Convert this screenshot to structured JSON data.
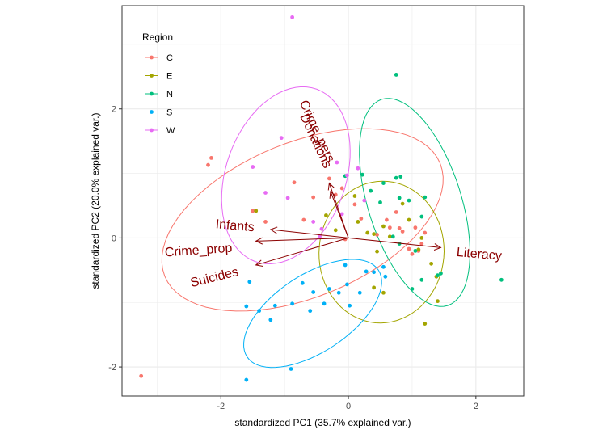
{
  "chart_data": {
    "type": "scatter",
    "subtype": "pca-biplot",
    "xlabel": "standardized PC1 (35.7% explained var.)",
    "ylabel": "standardized PC2 (20.0% explained var.)",
    "xlim": [
      -3.55,
      2.75
    ],
    "ylim": [
      -2.45,
      3.6
    ],
    "xticks": [
      -2,
      0,
      2
    ],
    "yticks": [
      -2,
      0,
      2
    ],
    "xtick_labels": [
      "-2",
      "0",
      "2"
    ],
    "ytick_labels": [
      "-2",
      "0",
      "2"
    ],
    "grid": true,
    "legend": {
      "title": "Region",
      "position": "top-left",
      "entries": [
        "C",
        "E",
        "N",
        "S",
        "W"
      ]
    },
    "colors": {
      "C": "#F8766D",
      "E": "#A3A500",
      "N": "#00BF7D",
      "S": "#00B0F6",
      "W": "#E76BF3",
      "arrow": "#8b0000",
      "panel_border": "#333333",
      "grid": "#ebebeb"
    },
    "series": [
      {
        "name": "C",
        "points": [
          [
            -3.25,
            -2.14
          ],
          [
            -2.2,
            1.13
          ],
          [
            -2.15,
            1.24
          ],
          [
            -1.5,
            0.42
          ],
          [
            -1.45,
            0.42
          ],
          [
            -1.3,
            0.25
          ],
          [
            -0.85,
            0.86
          ],
          [
            -0.7,
            0.28
          ],
          [
            -0.55,
            0.63
          ],
          [
            -0.3,
            0.92
          ],
          [
            -0.2,
            0.67
          ],
          [
            -0.1,
            0.77
          ],
          [
            -0.05,
            -0.02
          ],
          [
            0.1,
            0.52
          ],
          [
            0.2,
            0.3
          ],
          [
            0.45,
            0.05
          ],
          [
            0.6,
            0.28
          ],
          [
            0.65,
            0.16
          ],
          [
            0.75,
            0.4
          ],
          [
            0.8,
            0.15
          ],
          [
            0.85,
            0.1
          ],
          [
            1.05,
            0.16
          ],
          [
            1.1,
            -0.2
          ],
          [
            0.95,
            -0.17
          ],
          [
            1.0,
            -0.25
          ],
          [
            1.15,
            -0.09
          ],
          [
            1.2,
            0.08
          ]
        ]
      },
      {
        "name": "E",
        "points": [
          [
            -1.45,
            0.42
          ],
          [
            -0.35,
            0.35
          ],
          [
            -0.2,
            0.12
          ],
          [
            0.1,
            0.65
          ],
          [
            0.15,
            0.25
          ],
          [
            0.3,
            0.08
          ],
          [
            0.4,
            0.06
          ],
          [
            0.45,
            -0.21
          ],
          [
            0.55,
            0.18
          ],
          [
            0.65,
            0.02
          ],
          [
            0.85,
            0.53
          ],
          [
            0.95,
            0.28
          ],
          [
            1.1,
            -0.18
          ],
          [
            1.15,
            0.0
          ],
          [
            1.2,
            -1.33
          ],
          [
            1.3,
            -0.4
          ],
          [
            1.38,
            -0.6
          ],
          [
            1.4,
            -0.98
          ],
          [
            0.4,
            -0.77
          ],
          [
            0.55,
            -0.85
          ]
        ]
      },
      {
        "name": "N",
        "points": [
          [
            0.75,
            2.53
          ],
          [
            -0.05,
            0.96
          ],
          [
            0.22,
            0.98
          ],
          [
            0.35,
            0.73
          ],
          [
            0.5,
            0.55
          ],
          [
            0.55,
            0.85
          ],
          [
            0.75,
            0.93
          ],
          [
            0.8,
            0.62
          ],
          [
            0.95,
            0.58
          ],
          [
            1.15,
            0.33
          ],
          [
            1.2,
            0.63
          ],
          [
            0.7,
            0.02
          ],
          [
            0.8,
            -0.09
          ],
          [
            1.05,
            -0.2
          ],
          [
            1.4,
            -0.58
          ],
          [
            1.45,
            -0.55
          ],
          [
            1.15,
            -0.65
          ],
          [
            1.0,
            -0.79
          ],
          [
            2.4,
            -0.65
          ],
          [
            0.82,
            0.95
          ]
        ]
      },
      {
        "name": "S",
        "points": [
          [
            -1.4,
            -1.13
          ],
          [
            -1.6,
            -1.06
          ],
          [
            -1.55,
            -0.68
          ],
          [
            -1.15,
            -1.05
          ],
          [
            -0.88,
            -1.02
          ],
          [
            -0.72,
            -0.7
          ],
          [
            -0.55,
            -0.84
          ],
          [
            -0.6,
            -1.13
          ],
          [
            -0.38,
            -1.02
          ],
          [
            -0.3,
            -0.79
          ],
          [
            -0.15,
            -0.85
          ],
          [
            -0.02,
            -0.72
          ],
          [
            0.02,
            -1.05
          ],
          [
            0.18,
            -0.85
          ],
          [
            0.28,
            -0.52
          ],
          [
            0.4,
            -0.53
          ],
          [
            0.55,
            -0.45
          ],
          [
            0.58,
            -0.6
          ],
          [
            -0.05,
            -0.42
          ],
          [
            -1.6,
            -2.2
          ],
          [
            -0.9,
            -2.03
          ],
          [
            -1.22,
            -1.27
          ]
        ]
      },
      {
        "name": "W",
        "points": [
          [
            -0.88,
            3.42
          ],
          [
            -1.5,
            1.1
          ],
          [
            -1.3,
            0.7
          ],
          [
            -0.95,
            0.62
          ],
          [
            -1.05,
            1.55
          ],
          [
            -0.55,
            0.25
          ],
          [
            -0.42,
            0.14
          ],
          [
            -0.18,
            1.17
          ],
          [
            -0.1,
            0.37
          ],
          [
            -0.02,
            0.97
          ],
          [
            0.15,
            1.08
          ],
          [
            0.25,
            0.58
          ],
          [
            -0.45,
            0.02
          ]
        ]
      }
    ],
    "ellipses": [
      {
        "group": "C",
        "cx": -0.72,
        "cy": 0.28,
        "rx": 2.33,
        "ry": 1.2,
        "angle_deg": 22
      },
      {
        "group": "E",
        "cx": 0.52,
        "cy": -0.22,
        "rx": 0.98,
        "ry": 1.1,
        "angle_deg": -5
      },
      {
        "group": "N",
        "cx": 1.04,
        "cy": 0.55,
        "rx": 0.73,
        "ry": 1.68,
        "angle_deg": 18
      },
      {
        "group": "S",
        "cx": -0.56,
        "cy": -1.17,
        "rx": 1.23,
        "ry": 0.6,
        "angle_deg": 33
      },
      {
        "group": "W",
        "cx": -0.98,
        "cy": 0.97,
        "rx": 0.94,
        "ry": 1.42,
        "angle_deg": -20
      }
    ],
    "arrows": [
      {
        "label": "Crime_pers",
        "x": -0.3,
        "y": 0.85
      },
      {
        "label": "Donations",
        "x": -0.28,
        "y": 0.72
      },
      {
        "label": "Infants",
        "x": -1.22,
        "y": 0.13
      },
      {
        "label": "Crime_prop",
        "x": -1.45,
        "y": -0.05
      },
      {
        "label": "Suicides",
        "x": -1.45,
        "y": -0.42
      },
      {
        "label": "Literacy",
        "x": 1.45,
        "y": -0.15
      }
    ],
    "arrow_labels": [
      {
        "label": "Crime_pers",
        "x": -0.5,
        "y": 1.65,
        "rotate": 65
      },
      {
        "label": "Donations",
        "x": -0.52,
        "y": 1.5,
        "rotate": 65
      },
      {
        "label": "Infants",
        "x": -1.78,
        "y": 0.18,
        "rotate": 5
      },
      {
        "label": "Crime_prop",
        "x": -2.35,
        "y": -0.2,
        "rotate": -4
      },
      {
        "label": "Suicides",
        "x": -2.1,
        "y": -0.62,
        "rotate": -14
      },
      {
        "label": "Literacy",
        "x": 2.05,
        "y": -0.26,
        "rotate": 5
      }
    ]
  }
}
